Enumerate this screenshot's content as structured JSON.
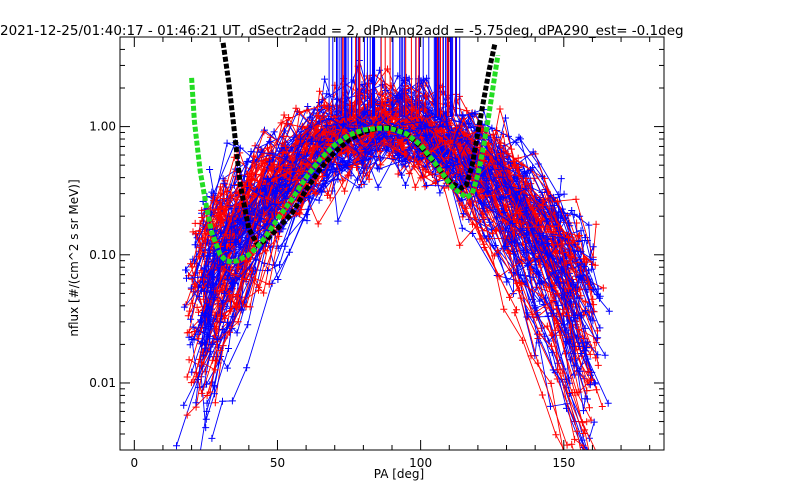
{
  "chart_data": {
    "type": "line",
    "title": "2021-12-25/01:40:17 - 01:46:21 UT, dSectr2add = 2, dPhAng2add = -5.75deg, dPA290_est=  -0.1deg",
    "xlabel": "PA [deg]",
    "ylabel": "nflux [#/(cm^2 s sr MeV)]",
    "xlim": [
      -5,
      185
    ],
    "ylim": [
      0.003,
      5
    ],
    "y_scale": "log",
    "grid": false,
    "x_ticks": [
      0,
      50,
      100,
      150
    ],
    "x_tick_labels": [
      "0",
      "50",
      "100",
      "150"
    ],
    "y_ticks": [
      0.01,
      0.1,
      1.0
    ],
    "y_tick_labels": [
      "0.01",
      "0.10",
      "1.00"
    ],
    "colors": {
      "series_a": "#ff0000",
      "series_b": "#0000ff",
      "fit_black": "#000000",
      "fit_green": "#22dd22",
      "axes": "#000000"
    },
    "series": [
      {
        "style": "dashed-thick",
        "color": "#000000",
        "x": [
          31,
          33,
          35,
          37,
          40,
          43,
          46,
          50,
          55,
          60,
          65,
          70,
          75,
          80,
          85,
          88,
          90,
          95,
          100,
          105,
          108,
          111,
          114,
          116,
          118,
          120,
          122,
          124,
          126
        ],
        "y": [
          4.5,
          2.2,
          0.9,
          0.35,
          0.16,
          0.12,
          0.13,
          0.16,
          0.21,
          0.32,
          0.47,
          0.63,
          0.79,
          0.91,
          0.97,
          0.98,
          0.97,
          0.88,
          0.7,
          0.52,
          0.42,
          0.36,
          0.33,
          0.35,
          0.5,
          0.9,
          1.6,
          2.8,
          4.5
        ]
      },
      {
        "style": "dashed-thick",
        "color": "#22dd22",
        "x": [
          20,
          21,
          22,
          23,
          25,
          27,
          30,
          32,
          34,
          36,
          38,
          40,
          43,
          46,
          50,
          55,
          60,
          65,
          70,
          75,
          80,
          85,
          88,
          90,
          95,
          100,
          105,
          108,
          111,
          114,
          116,
          118,
          120,
          122,
          124,
          126,
          127
        ],
        "y": [
          2.4,
          1.1,
          0.7,
          0.45,
          0.25,
          0.15,
          0.1,
          0.09,
          0.088,
          0.09,
          0.095,
          0.1,
          0.115,
          0.14,
          0.19,
          0.27,
          0.4,
          0.56,
          0.72,
          0.86,
          0.94,
          0.97,
          0.97,
          0.96,
          0.88,
          0.72,
          0.52,
          0.42,
          0.34,
          0.3,
          0.28,
          0.3,
          0.42,
          0.7,
          1.3,
          2.6,
          3.6
        ]
      }
    ],
    "notes": []
  }
}
